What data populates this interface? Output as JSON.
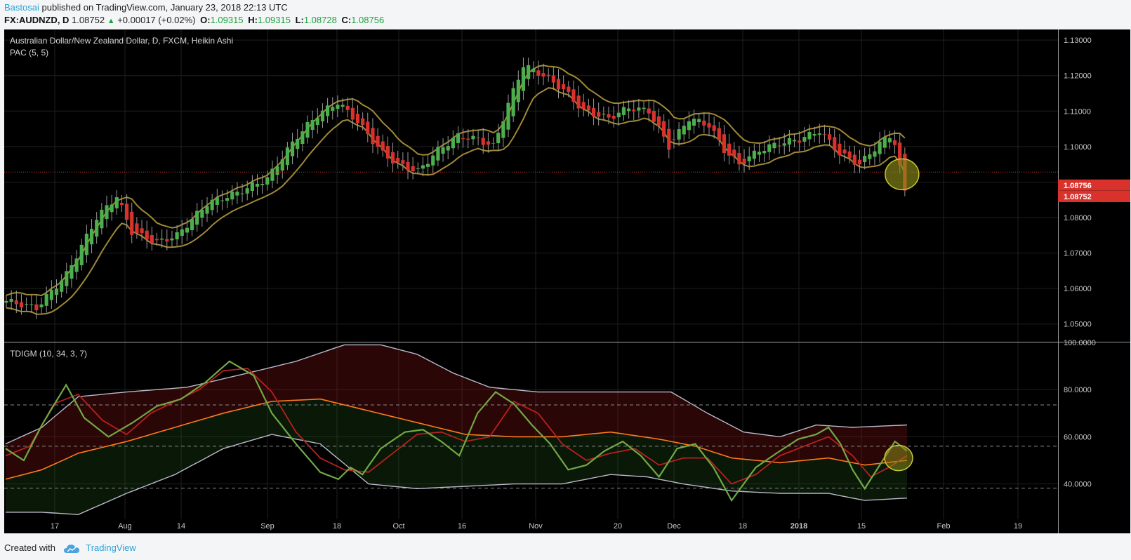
{
  "header": {
    "author": "Bastosai",
    "published_text": "published on TradingView.com, January 23, 2018 22:13 UTC",
    "symbol": "FX:AUDNZD, D",
    "last_price": "1.08752",
    "change": "+0.00017 (+0.02%)",
    "open_label": "O:",
    "open": "1.09315",
    "high_label": "H:",
    "high": "1.09315",
    "low_label": "L:",
    "low": "1.08728",
    "close_label": "C:",
    "close": "1.08756"
  },
  "footer": {
    "created_with": "Created with",
    "brand": "TradingView"
  },
  "colors": {
    "background": "#000000",
    "grid": "#1f1f1f",
    "bull": "#4cae4c",
    "bear": "#d9322d",
    "pac": "#a08a35",
    "tdi_green": "#72a845",
    "tdi_red": "#b8211e",
    "tdi_orange": "#ff7b1a",
    "tdi_band": "#b9b9c9",
    "highlight": "#8a8a1a",
    "price_line": "#c0392b"
  },
  "chart_data": [
    {
      "type": "candlestick",
      "title": "Australian Dollar/New Zealand Dollar, D, FXCM, Heikin Ashi",
      "indicator_label": "PAC (5, 5)",
      "x_axis_ticks": [
        "17",
        "Aug",
        "14",
        "Sep",
        "18",
        "Oct",
        "16",
        "Nov",
        "20",
        "Dec",
        "18",
        "2018",
        "15",
        "Feb",
        "19"
      ],
      "ylim": [
        1.045,
        1.133
      ],
      "y_ticks": [
        "1.05000",
        "1.06000",
        "1.07000",
        "1.08000",
        "1.09000",
        "1.10000",
        "1.11000",
        "1.12000",
        "1.13000"
      ],
      "price_labels": [
        "1.08756",
        "1.08752"
      ],
      "reference_line": 1.0928,
      "close_path": [
        [
          0,
          1.0565
        ],
        [
          6,
          1.0545
        ],
        [
          12,
          1.064
        ],
        [
          18,
          1.08
        ],
        [
          22,
          1.086
        ],
        [
          25,
          1.076
        ],
        [
          30,
          1.073
        ],
        [
          34,
          1.075
        ],
        [
          40,
          1.084
        ],
        [
          46,
          1.087
        ],
        [
          52,
          1.091
        ],
        [
          58,
          1.103
        ],
        [
          62,
          1.109
        ],
        [
          66,
          1.1125
        ],
        [
          70,
          1.107
        ],
        [
          75,
          1.098
        ],
        [
          78,
          1.095
        ],
        [
          82,
          1.093
        ],
        [
          86,
          1.099
        ],
        [
          90,
          1.103
        ],
        [
          94,
          1.102
        ],
        [
          97,
          1.1
        ],
        [
          100,
          1.112
        ],
        [
          103,
          1.123
        ],
        [
          107,
          1.12
        ],
        [
          111,
          1.116
        ],
        [
          115,
          1.11
        ],
        [
          120,
          1.108
        ],
        [
          124,
          1.111
        ],
        [
          128,
          1.11
        ],
        [
          132,
          1.1
        ],
        [
          136,
          1.108
        ],
        [
          140,
          1.106
        ],
        [
          143,
          1.099
        ],
        [
          146,
          1.095
        ],
        [
          150,
          1.099
        ],
        [
          154,
          1.101
        ],
        [
          158,
          1.102
        ],
        [
          162,
          1.1045
        ],
        [
          166,
          1.098
        ],
        [
          170,
          1.095
        ],
        [
          174,
          1.101
        ],
        [
          176,
          1.103
        ],
        [
          177,
          1.101
        ],
        [
          178,
          1.094
        ],
        [
          179,
          1.0876
        ]
      ],
      "highlight": "bearish candle circled at latest bar"
    },
    {
      "type": "line",
      "title": "TDIGM (10, 34, 3, 7)",
      "ylim": [
        25,
        100
      ],
      "y_ticks": [
        "40.0000",
        "60.0000",
        "80.0000",
        "100.0000"
      ],
      "dashed_levels": [
        38.2,
        56,
        73.5
      ],
      "series": [
        {
          "name": "",
          "color": "#72a845",
          "values": [
            [
              0,
              55
            ],
            [
              3,
              50
            ],
            [
              6,
              65
            ],
            [
              10,
              82
            ],
            [
              13,
              68
            ],
            [
              17,
              60
            ],
            [
              21,
              66
            ],
            [
              25,
              73
            ],
            [
              29,
              76
            ],
            [
              33,
              83
            ],
            [
              37,
              92
            ],
            [
              41,
              86
            ],
            [
              44,
              70
            ],
            [
              48,
              57
            ],
            [
              52,
              45
            ],
            [
              55,
              42
            ],
            [
              57,
              47
            ],
            [
              59,
              44
            ],
            [
              62,
              55
            ],
            [
              66,
              62
            ],
            [
              69,
              63
            ],
            [
              72,
              58
            ],
            [
              75,
              52
            ],
            [
              78,
              70
            ],
            [
              81,
              79
            ],
            [
              84,
              74
            ],
            [
              87,
              65
            ],
            [
              90,
              57
            ],
            [
              93,
              46
            ],
            [
              96,
              48
            ],
            [
              99,
              54
            ],
            [
              102,
              58
            ],
            [
              105,
              52
            ],
            [
              108,
              43
            ],
            [
              111,
              55
            ],
            [
              114,
              57
            ],
            [
              117,
              47
            ],
            [
              120,
              33
            ],
            [
              124,
              47
            ],
            [
              128,
              54
            ],
            [
              131,
              59
            ],
            [
              134,
              61
            ],
            [
              136,
              64
            ],
            [
              138,
              57
            ],
            [
              140,
              46
            ],
            [
              142,
              38
            ],
            [
              145,
              50
            ],
            [
              147,
              58
            ],
            [
              149,
              54
            ]
          ]
        },
        {
          "name": "",
          "color": "#b8211e",
          "values": [
            [
              0,
              52
            ],
            [
              4,
              56
            ],
            [
              8,
              74
            ],
            [
              12,
              78
            ],
            [
              16,
              67
            ],
            [
              20,
              61
            ],
            [
              24,
              70
            ],
            [
              28,
              75
            ],
            [
              32,
              80
            ],
            [
              36,
              88
            ],
            [
              40,
              89
            ],
            [
              44,
              79
            ],
            [
              48,
              62
            ],
            [
              52,
              51
            ],
            [
              56,
              46
            ],
            [
              60,
              45
            ],
            [
              64,
              53
            ],
            [
              68,
              61
            ],
            [
              72,
              62
            ],
            [
              76,
              58
            ],
            [
              80,
              60
            ],
            [
              84,
              75
            ],
            [
              88,
              70
            ],
            [
              92,
              57
            ],
            [
              96,
              50
            ],
            [
              100,
              53
            ],
            [
              104,
              55
            ],
            [
              108,
              48
            ],
            [
              112,
              51
            ],
            [
              116,
              51
            ],
            [
              120,
              40
            ],
            [
              124,
              44
            ],
            [
              128,
              52
            ],
            [
              132,
              56
            ],
            [
              136,
              60
            ],
            [
              140,
              52
            ],
            [
              143,
              43
            ],
            [
              146,
              47
            ],
            [
              149,
              52
            ]
          ]
        },
        {
          "name": "",
          "color": "#ff7b1a",
          "values": [
            [
              0,
              42
            ],
            [
              6,
              46
            ],
            [
              12,
              53
            ],
            [
              20,
              58
            ],
            [
              28,
              64
            ],
            [
              36,
              70
            ],
            [
              44,
              75
            ],
            [
              52,
              76
            ],
            [
              60,
              71
            ],
            [
              68,
              66
            ],
            [
              76,
              61
            ],
            [
              84,
              60
            ],
            [
              92,
              60
            ],
            [
              100,
              62
            ],
            [
              108,
              59
            ],
            [
              114,
              56
            ],
            [
              120,
              51
            ],
            [
              128,
              49
            ],
            [
              136,
              51
            ],
            [
              142,
              48
            ],
            [
              149,
              50
            ]
          ]
        },
        {
          "name": "",
          "color": "#b9b9c9",
          "values": [
            [
              0,
              57
            ],
            [
              6,
              64
            ],
            [
              12,
              77
            ],
            [
              20,
              79
            ],
            [
              30,
              81
            ],
            [
              40,
              87
            ],
            [
              48,
              92
            ],
            [
              56,
              99
            ],
            [
              62,
              99
            ],
            [
              68,
              95
            ],
            [
              74,
              87
            ],
            [
              80,
              81
            ],
            [
              88,
              79
            ],
            [
              96,
              79
            ],
            [
              104,
              79
            ],
            [
              110,
              79
            ],
            [
              116,
              70
            ],
            [
              122,
              62
            ],
            [
              128,
              60
            ],
            [
              134,
              65
            ],
            [
              140,
              64
            ],
            [
              149,
              65
            ]
          ]
        },
        {
          "name": "",
          "color": "#b9b9c9",
          "values": [
            [
              0,
              28
            ],
            [
              6,
              28
            ],
            [
              12,
              27
            ],
            [
              20,
              36
            ],
            [
              28,
              44
            ],
            [
              36,
              55
            ],
            [
              44,
              61
            ],
            [
              52,
              57
            ],
            [
              60,
              40
            ],
            [
              68,
              38
            ],
            [
              76,
              39
            ],
            [
              84,
              40
            ],
            [
              92,
              40
            ],
            [
              100,
              44
            ],
            [
              106,
              43
            ],
            [
              112,
              40
            ],
            [
              120,
              37
            ],
            [
              128,
              36
            ],
            [
              136,
              36
            ],
            [
              142,
              33
            ],
            [
              149,
              34
            ]
          ]
        }
      ]
    }
  ]
}
